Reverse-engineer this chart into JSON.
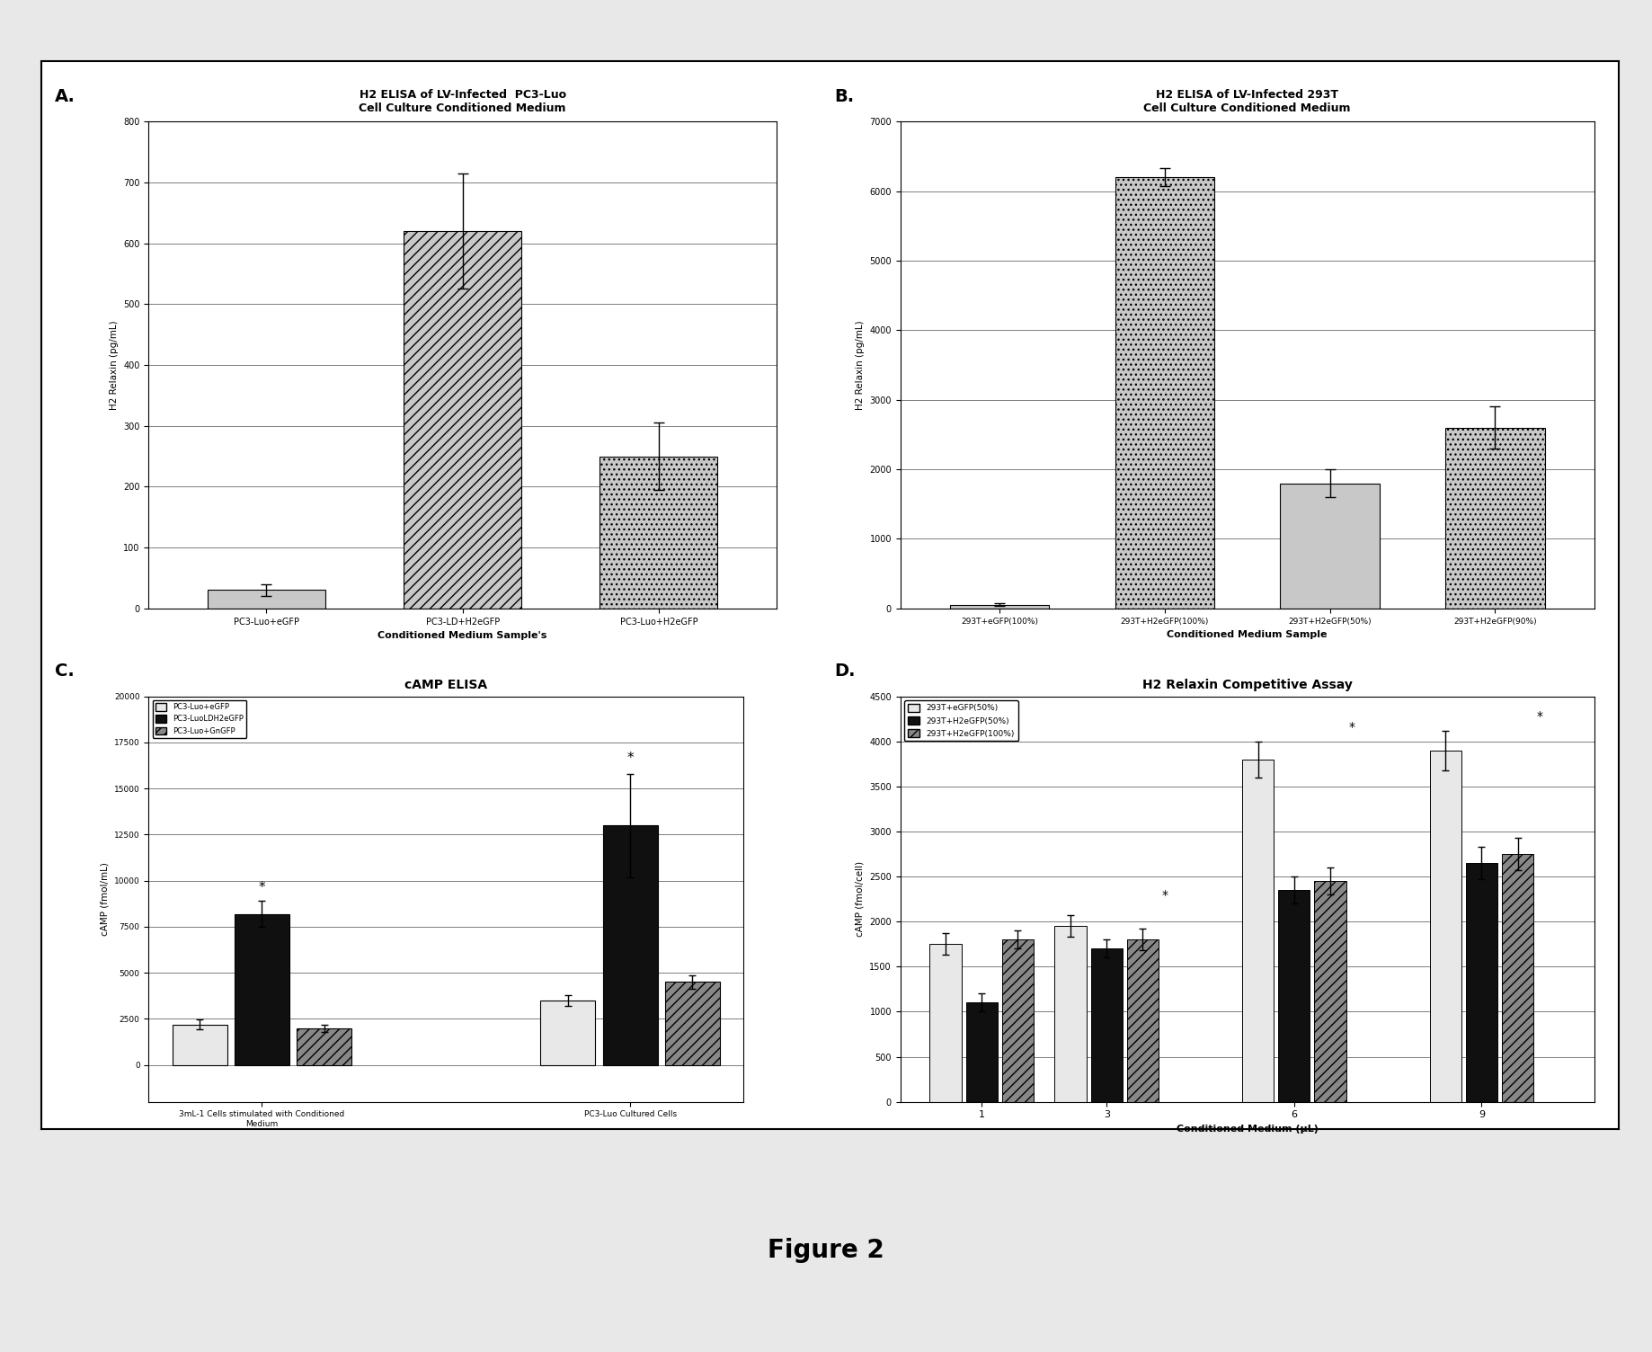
{
  "figure_title": "Figure 2",
  "background_color": "#f0f0f0",
  "panel_A": {
    "title": "H2 ELISA of LV-Infected  PC3-Luo\nCell Culture Conditioned Medium",
    "xlabel": "Conditioned Medium Sample's",
    "ylabel": "H2 Relaxin (pg/mL)",
    "ylim": [
      0,
      800
    ],
    "yticks": [
      0,
      100,
      200,
      300,
      400,
      500,
      600,
      700,
      800
    ],
    "yticklabels": [
      "0",
      "100",
      "200",
      "300",
      "400",
      "500",
      "600",
      "700",
      "800"
    ],
    "categories": [
      "PC3-Luo+eGFP",
      "PC3-LD+H2eGFP",
      "PC3-Luo+H2eGFP"
    ],
    "values": [
      30,
      620,
      250
    ],
    "errors": [
      10,
      95,
      55
    ],
    "bar_colors": [
      "#c8c8c8",
      "#c8c8c8",
      "#c8c8c8"
    ],
    "bar_hatches": [
      "",
      "///",
      "..."
    ]
  },
  "panel_B": {
    "title": "H2 ELISA of LV-Infected 293T\nCell Culture Conditioned Medium",
    "xlabel": "Conditioned Medium Sample",
    "ylabel": "H2 Relaxin (pg/mL)",
    "ylim": [
      0,
      7000
    ],
    "yticks": [
      0,
      1000,
      2000,
      3000,
      4000,
      5000,
      6000,
      7000
    ],
    "yticklabels": [
      "0",
      "1000",
      "2000",
      "3000",
      "4000",
      "5000",
      "6000",
      "7000"
    ],
    "categories": [
      "293T+eGFP(100%)",
      "293T+H2eGFP(100%)",
      "293T+H2eGFP(50%)",
      "293T+H2eGFP(90%)"
    ],
    "values": [
      50,
      6200,
      1800,
      2600
    ],
    "errors": [
      20,
      130,
      200,
      300
    ],
    "bar_colors": [
      "#c8c8c8",
      "#c8c8c8",
      "#c8c8c8",
      "#c8c8c8"
    ],
    "bar_hatches": [
      "",
      "...",
      "",
      "..."
    ]
  },
  "panel_C": {
    "title": "cAMP ELISA",
    "xlabel": "",
    "ylabel": "cAMP (fmol/mL)",
    "ylim": [
      -2000,
      20000
    ],
    "yticks": [
      0,
      2500,
      5000,
      7500,
      10000,
      12500,
      15000,
      17500,
      20000
    ],
    "yticklabels": [
      "0",
      "2500",
      "5000",
      "7500",
      "10000",
      "12500",
      "15000",
      "17500",
      "20000"
    ],
    "group_labels": [
      "3mL-1 Cells stimulated with Conditioned\nMedium",
      "PC3-Luo Cultured Cells"
    ],
    "group_centers": [
      0.5,
      1.8
    ],
    "legend": [
      "PC3-Luo+eGFP",
      "PC3-LuoLDH2eGFP",
      "PC3-Luo+GnGFP"
    ],
    "legend_colors": [
      "#e8e8e8",
      "#101010",
      "#888888"
    ],
    "legend_hatches": [
      "",
      "",
      "///"
    ],
    "group1_values": [
      2200,
      8200,
      2000
    ],
    "group1_errors": [
      250,
      700,
      200
    ],
    "group2_values": [
      3500,
      13000,
      4500
    ],
    "group2_errors": [
      300,
      2800,
      350
    ],
    "bar_width": 0.22
  },
  "panel_D": {
    "title": "H2 Relaxin Competitive Assay",
    "xlabel": "Conditioned Medium (μL)",
    "ylabel": "cAMP (fmol/cell)",
    "ylim": [
      0,
      4500
    ],
    "yticks": [
      0,
      500,
      1000,
      1500,
      2000,
      2500,
      3000,
      3500,
      4000,
      4500
    ],
    "yticklabels": [
      "0",
      "500",
      "1000",
      "1500",
      "2000",
      "2500",
      "3000",
      "3500",
      "4000",
      "4500"
    ],
    "x_positions": [
      1,
      3,
      6,
      9
    ],
    "legend": [
      "293T+eGFP(50%)",
      "293T+H2eGFP(50%)",
      "293T+H2eGFP(100%)"
    ],
    "legend_colors": [
      "#e8e8e8",
      "#101010",
      "#888888"
    ],
    "legend_hatches": [
      "",
      "",
      "///"
    ],
    "series1": [
      1750,
      1950,
      3800,
      3900
    ],
    "series2": [
      1100,
      1700,
      2350,
      2650
    ],
    "series3": [
      1800,
      1800,
      2450,
      2750
    ],
    "errors1": [
      120,
      120,
      200,
      220
    ],
    "errors2": [
      100,
      100,
      150,
      180
    ],
    "errors3": [
      100,
      120,
      150,
      180
    ],
    "bar_width": 0.55
  }
}
